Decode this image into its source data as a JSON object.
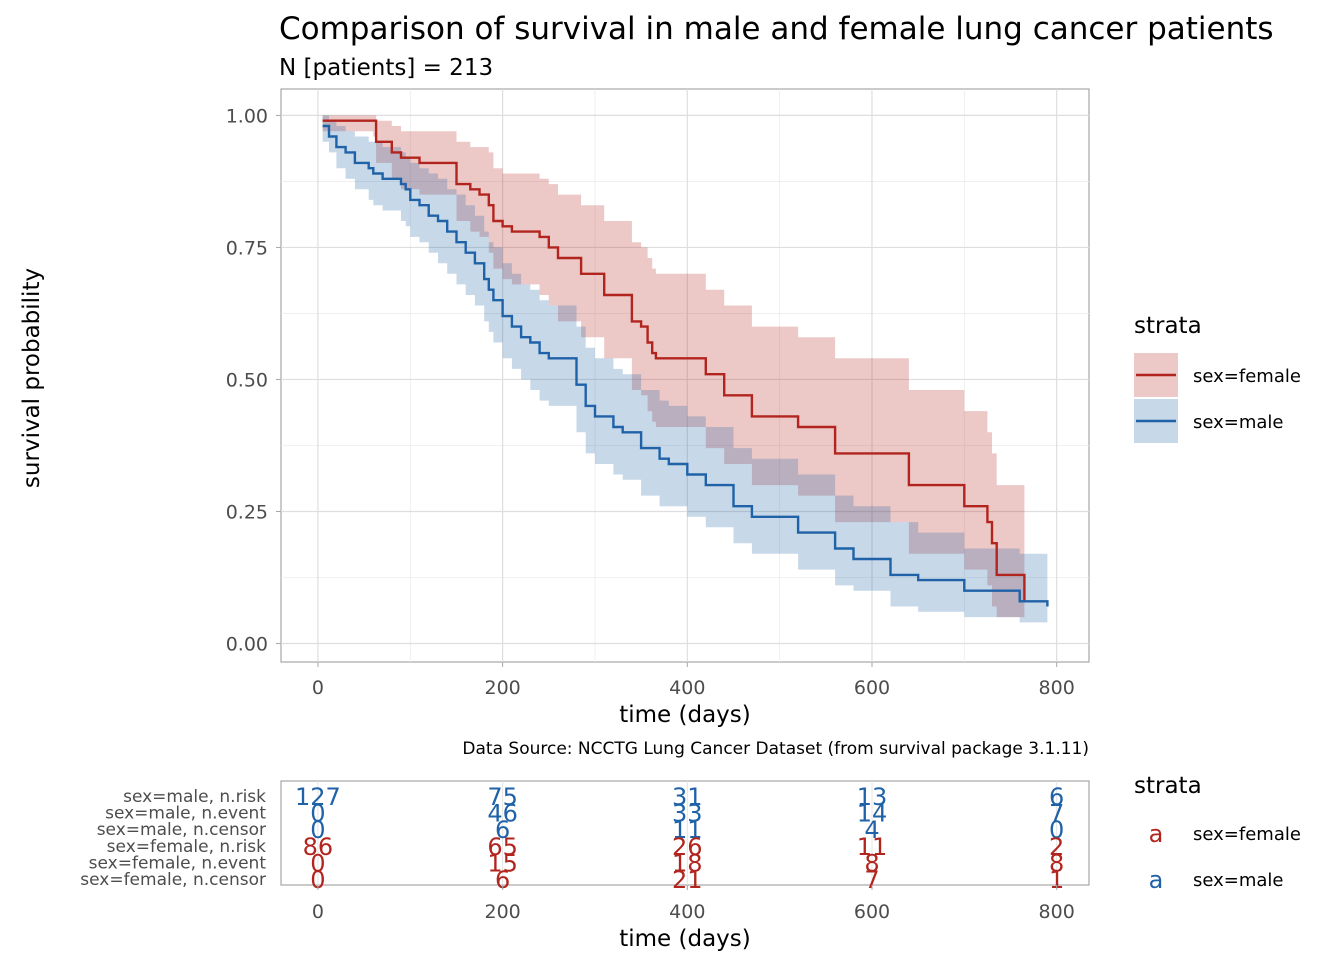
{
  "chart_data": {
    "type": "line",
    "title": "Comparison of survival in male and female lung cancer patients",
    "subtitle": "N [patients] = 213",
    "xlabel": "time (days)",
    "ylabel": "survival probability",
    "xlim": [
      -40,
      835
    ],
    "ylim": [
      -0.035,
      1.05
    ],
    "x_ticks": [
      0,
      200,
      400,
      600,
      800
    ],
    "y_ticks": [
      0.0,
      0.25,
      0.5,
      0.75,
      1.0
    ],
    "y_tick_labels": [
      "0.00",
      "0.25",
      "0.50",
      "0.75",
      "1.00"
    ],
    "grid": true,
    "legend": {
      "title": "strata",
      "position": "right",
      "entries": [
        "sex=female",
        "sex=male"
      ]
    },
    "caption": "Data Source: NCCTG Lung Cancer Dataset (from survival package 3.1.11)",
    "series": [
      {
        "name": "sex=female",
        "color": "#B2251E",
        "x": [
          5,
          60,
          63,
          80,
          90,
          110,
          150,
          165,
          175,
          185,
          190,
          200,
          210,
          240,
          250,
          260,
          285,
          310,
          340,
          350,
          357,
          362,
          366,
          375,
          420,
          440,
          470,
          520,
          560,
          640,
          650,
          700,
          725,
          730,
          735,
          765
        ],
        "y": [
          0.99,
          0.99,
          0.95,
          0.93,
          0.92,
          0.91,
          0.87,
          0.86,
          0.85,
          0.83,
          0.8,
          0.79,
          0.78,
          0.77,
          0.75,
          0.73,
          0.7,
          0.66,
          0.61,
          0.6,
          0.57,
          0.55,
          0.54,
          0.54,
          0.51,
          0.47,
          0.43,
          0.41,
          0.36,
          0.3,
          0.3,
          0.26,
          0.23,
          0.19,
          0.13,
          0.08
        ],
        "lower": [
          0.97,
          0.96,
          0.91,
          0.88,
          0.86,
          0.85,
          0.8,
          0.78,
          0.77,
          0.74,
          0.71,
          0.69,
          0.68,
          0.66,
          0.64,
          0.61,
          0.58,
          0.54,
          0.48,
          0.47,
          0.44,
          0.42,
          0.41,
          0.41,
          0.37,
          0.34,
          0.3,
          0.28,
          0.23,
          0.17,
          0.17,
          0.14,
          0.11,
          0.07,
          0.05,
          0.05
        ],
        "upper": [
          1.0,
          1.0,
          0.99,
          0.98,
          0.97,
          0.97,
          0.95,
          0.94,
          0.94,
          0.93,
          0.9,
          0.89,
          0.89,
          0.88,
          0.87,
          0.85,
          0.83,
          0.8,
          0.76,
          0.75,
          0.73,
          0.71,
          0.7,
          0.7,
          0.67,
          0.64,
          0.6,
          0.58,
          0.54,
          0.48,
          0.48,
          0.44,
          0.4,
          0.36,
          0.3,
          0.3
        ]
      },
      {
        "name": "sex=male",
        "color": "#1F62A8",
        "x": [
          5,
          12,
          20,
          30,
          40,
          55,
          60,
          70,
          90,
          95,
          100,
          110,
          120,
          130,
          140,
          150,
          160,
          170,
          180,
          185,
          190,
          200,
          210,
          220,
          230,
          240,
          250,
          280,
          290,
          300,
          320,
          330,
          350,
          370,
          380,
          400,
          420,
          450,
          470,
          520,
          560,
          580,
          620,
          650,
          700,
          760,
          790
        ],
        "y": [
          0.98,
          0.96,
          0.94,
          0.93,
          0.91,
          0.9,
          0.89,
          0.88,
          0.87,
          0.86,
          0.84,
          0.83,
          0.81,
          0.8,
          0.78,
          0.76,
          0.74,
          0.72,
          0.69,
          0.67,
          0.65,
          0.62,
          0.6,
          0.58,
          0.57,
          0.55,
          0.54,
          0.49,
          0.45,
          0.43,
          0.41,
          0.4,
          0.37,
          0.35,
          0.34,
          0.32,
          0.3,
          0.26,
          0.24,
          0.21,
          0.18,
          0.16,
          0.13,
          0.12,
          0.1,
          0.08,
          0.07
        ],
        "lower": [
          0.95,
          0.93,
          0.9,
          0.88,
          0.86,
          0.84,
          0.83,
          0.82,
          0.8,
          0.79,
          0.77,
          0.76,
          0.74,
          0.72,
          0.7,
          0.68,
          0.66,
          0.64,
          0.61,
          0.59,
          0.57,
          0.54,
          0.52,
          0.5,
          0.48,
          0.46,
          0.45,
          0.4,
          0.36,
          0.34,
          0.32,
          0.31,
          0.28,
          0.26,
          0.26,
          0.24,
          0.22,
          0.19,
          0.17,
          0.14,
          0.11,
          0.1,
          0.07,
          0.06,
          0.05,
          0.04,
          0.04
        ],
        "upper": [
          1.0,
          0.99,
          0.98,
          0.97,
          0.96,
          0.95,
          0.95,
          0.94,
          0.93,
          0.92,
          0.91,
          0.9,
          0.89,
          0.88,
          0.86,
          0.85,
          0.83,
          0.81,
          0.78,
          0.76,
          0.75,
          0.72,
          0.7,
          0.68,
          0.67,
          0.65,
          0.64,
          0.6,
          0.56,
          0.54,
          0.52,
          0.51,
          0.48,
          0.46,
          0.45,
          0.43,
          0.41,
          0.37,
          0.35,
          0.32,
          0.28,
          0.26,
          0.23,
          0.21,
          0.18,
          0.17,
          0.17
        ]
      }
    ],
    "risk_table": {
      "xlabel": "time (days)",
      "times": [
        0,
        200,
        400,
        600,
        800
      ],
      "legend": {
        "title": "strata",
        "glyph": "a",
        "entries": [
          "sex=female",
          "sex=male"
        ]
      },
      "rows": [
        {
          "label": "sex=male, n.risk",
          "strata": "sex=male",
          "values": [
            "127",
            "75",
            "31",
            "13",
            "6"
          ]
        },
        {
          "label": "sex=male, n.event",
          "strata": "sex=male",
          "values": [
            "0",
            "46",
            "33",
            "14",
            "7"
          ]
        },
        {
          "label": "sex=male, n.censor",
          "strata": "sex=male",
          "values": [
            "0",
            "6",
            "11",
            "4",
            "0"
          ]
        },
        {
          "label": "sex=female, n.risk",
          "strata": "sex=female",
          "values": [
            "86",
            "65",
            "26",
            "11",
            "2"
          ]
        },
        {
          "label": "sex=female, n.event",
          "strata": "sex=female",
          "values": [
            "0",
            "15",
            "18",
            "8",
            "8"
          ]
        },
        {
          "label": "sex=female, n.censor",
          "strata": "sex=female",
          "values": [
            "0",
            "6",
            "21",
            "7",
            "1"
          ]
        }
      ]
    }
  }
}
